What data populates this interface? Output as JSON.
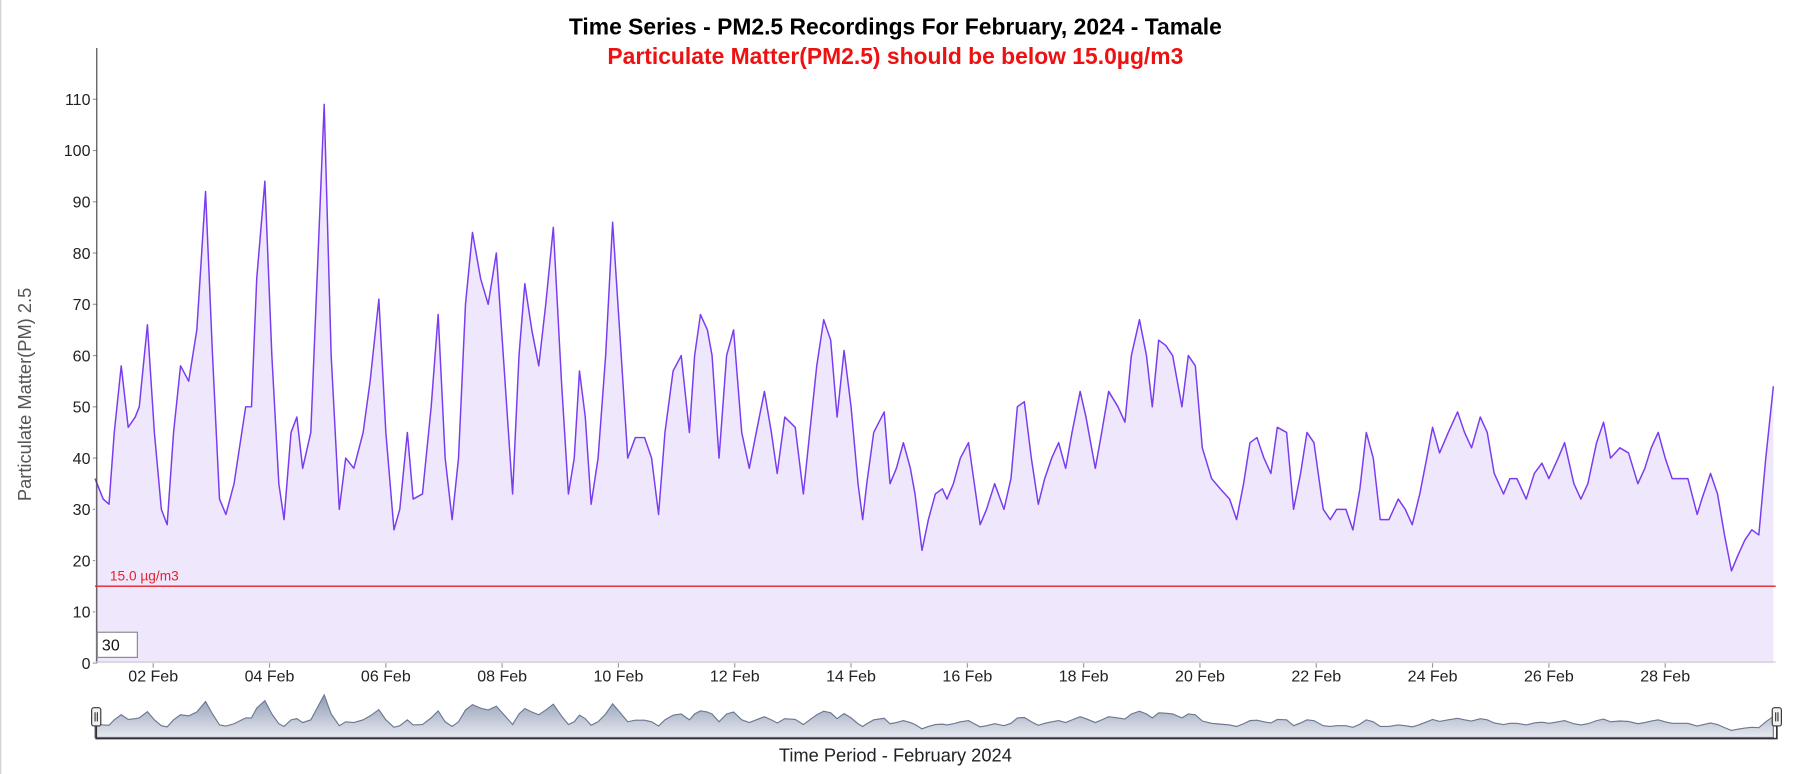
{
  "chart_data": {
    "type": "area",
    "title": "Time Series - PM2.5 Recordings For February, 2024 - Tamale",
    "subtitle": "Particulate Matter(PM2.5) should be below 15.0µg/m3",
    "xlabel": "Time Period - February 2024",
    "ylabel": "Particulate Matter(PM) 2.5",
    "x": [
      1.0,
      1.14,
      1.24,
      1.33,
      1.45,
      1.57,
      1.69,
      1.76,
      1.9,
      2.02,
      2.14,
      2.24,
      2.35,
      2.47,
      2.61,
      2.75,
      2.9,
      3.02,
      3.14,
      3.25,
      3.39,
      3.59,
      3.69,
      3.78,
      3.92,
      4.04,
      4.16,
      4.25,
      4.37,
      4.47,
      4.57,
      4.71,
      4.94,
      5.06,
      5.2,
      5.31,
      5.45,
      5.61,
      5.73,
      5.88,
      6.0,
      6.14,
      6.24,
      6.37,
      6.47,
      6.63,
      6.78,
      6.9,
      7.02,
      7.14,
      7.25,
      7.37,
      7.49,
      7.63,
      7.76,
      7.9,
      8.02,
      8.18,
      8.29,
      8.39,
      8.51,
      8.63,
      8.75,
      8.88,
      9.02,
      9.14,
      9.24,
      9.33,
      9.43,
      9.53,
      9.65,
      9.78,
      9.9,
      10.02,
      10.16,
      10.29,
      10.45,
      10.57,
      10.69,
      10.8,
      10.94,
      11.08,
      11.22,
      11.31,
      11.41,
      11.53,
      11.61,
      11.73,
      11.86,
      11.98,
      12.12,
      12.25,
      12.37,
      12.51,
      12.63,
      12.73,
      12.86,
      13.04,
      13.18,
      13.29,
      13.41,
      13.53,
      13.65,
      13.76,
      13.88,
      14.0,
      14.12,
      14.2,
      14.27,
      14.39,
      14.57,
      14.67,
      14.78,
      14.9,
      15.02,
      15.1,
      15.22,
      15.33,
      15.45,
      15.57,
      15.65,
      15.76,
      15.88,
      16.02,
      16.12,
      16.22,
      16.33,
      16.47,
      16.63,
      16.75,
      16.86,
      16.98,
      17.1,
      17.22,
      17.33,
      17.45,
      17.57,
      17.69,
      17.8,
      17.94,
      18.04,
      18.2,
      18.31,
      18.43,
      18.59,
      18.71,
      18.82,
      18.96,
      19.08,
      19.18,
      19.29,
      19.41,
      19.53,
      19.69,
      19.8,
      19.92,
      20.04,
      20.2,
      20.35,
      20.51,
      20.63,
      20.75,
      20.86,
      20.98,
      21.1,
      21.22,
      21.33,
      21.49,
      21.61,
      21.73,
      21.84,
      21.96,
      22.12,
      22.24,
      22.35,
      22.51,
      22.63,
      22.75,
      22.86,
      22.98,
      23.1,
      23.25,
      23.41,
      23.53,
      23.65,
      23.78,
      23.9,
      24.0,
      24.12,
      24.27,
      24.43,
      24.55,
      24.67,
      24.82,
      24.94,
      25.06,
      25.22,
      25.33,
      25.45,
      25.61,
      25.75,
      25.88,
      26.0,
      26.16,
      26.27,
      26.43,
      26.55,
      26.67,
      26.82,
      26.94,
      27.06,
      27.22,
      27.37,
      27.53,
      27.65,
      27.76,
      27.88,
      28.0,
      28.12,
      28.27,
      28.39,
      28.55,
      28.63,
      28.78,
      28.9,
      29.02,
      29.14,
      29.25,
      29.37,
      29.49,
      29.61,
      29.73,
      29.86
    ],
    "series": [
      {
        "color": "#7a3cf0",
        "fill": "#efe8fd",
        "values": [
          36,
          32,
          31,
          45,
          58,
          46,
          48,
          50,
          66,
          45,
          30,
          27,
          45,
          58,
          55,
          65,
          92,
          60,
          32,
          29,
          35,
          50,
          50,
          75,
          94,
          60,
          35,
          28,
          45,
          48,
          38,
          45,
          109,
          60,
          30,
          40,
          38,
          45,
          55,
          71,
          45,
          26,
          30,
          45,
          32,
          33,
          50,
          68,
          40,
          28,
          40,
          70,
          84,
          75,
          70,
          80,
          60,
          33,
          60,
          74,
          65,
          58,
          70,
          85,
          55,
          33,
          40,
          57,
          48,
          31,
          40,
          60,
          86,
          65,
          40,
          44,
          44,
          40,
          29,
          45,
          57,
          60,
          45,
          60,
          68,
          65,
          60,
          40,
          60,
          65,
          45,
          38,
          45,
          53,
          45,
          37,
          48,
          46,
          33,
          45,
          58,
          67,
          63,
          48,
          61,
          50,
          35,
          28,
          35,
          45,
          49,
          35,
          38,
          43,
          38,
          33,
          22,
          28,
          33,
          34,
          32,
          35,
          40,
          43,
          35,
          27,
          30,
          35,
          30,
          36,
          50,
          51,
          40,
          31,
          36,
          40,
          43,
          38,
          45,
          53,
          48,
          38,
          45,
          53,
          50,
          47,
          60,
          67,
          60,
          50,
          63,
          62,
          60,
          50,
          60,
          58,
          42,
          36,
          34,
          32,
          28,
          35,
          43,
          44,
          40,
          37,
          46,
          45,
          30,
          37,
          45,
          43,
          30,
          28,
          30,
          30,
          26,
          34,
          45,
          40,
          28,
          28,
          32,
          30,
          27,
          33,
          40,
          46,
          41,
          45,
          49,
          45,
          42,
          48,
          45,
          37,
          33,
          36,
          36,
          32,
          37,
          39,
          36,
          40,
          43,
          35,
          32,
          35,
          43,
          47,
          40,
          42,
          41,
          35,
          38,
          42,
          45,
          40,
          36,
          36,
          36,
          29,
          32,
          37,
          33,
          25,
          18,
          21,
          24,
          26,
          25,
          40,
          54
        ]
      }
    ],
    "threshold": {
      "value": 15,
      "label": "15.0 µg/m3",
      "color": "#e8202a"
    },
    "xlim": [
      1,
      29.9
    ],
    "xticks": [
      {
        "value": 2,
        "label": "02 Feb"
      },
      {
        "value": 4,
        "label": "04 Feb"
      },
      {
        "value": 6,
        "label": "06 Feb"
      },
      {
        "value": 8,
        "label": "08 Feb"
      },
      {
        "value": 10,
        "label": "10 Feb"
      },
      {
        "value": 12,
        "label": "12 Feb"
      },
      {
        "value": 14,
        "label": "14 Feb"
      },
      {
        "value": 16,
        "label": "16 Feb"
      },
      {
        "value": 18,
        "label": "18 Feb"
      },
      {
        "value": 20,
        "label": "20 Feb"
      },
      {
        "value": 22,
        "label": "22 Feb"
      },
      {
        "value": 24,
        "label": "24 Feb"
      },
      {
        "value": 26,
        "label": "26 Feb"
      },
      {
        "value": 28,
        "label": "28 Feb"
      }
    ],
    "ylim": [
      0,
      120
    ],
    "yticks": [
      0,
      10,
      20,
      30,
      40,
      50,
      60,
      70,
      80,
      90,
      100,
      110
    ],
    "grid": false,
    "range_input": "30",
    "navigator": true
  }
}
